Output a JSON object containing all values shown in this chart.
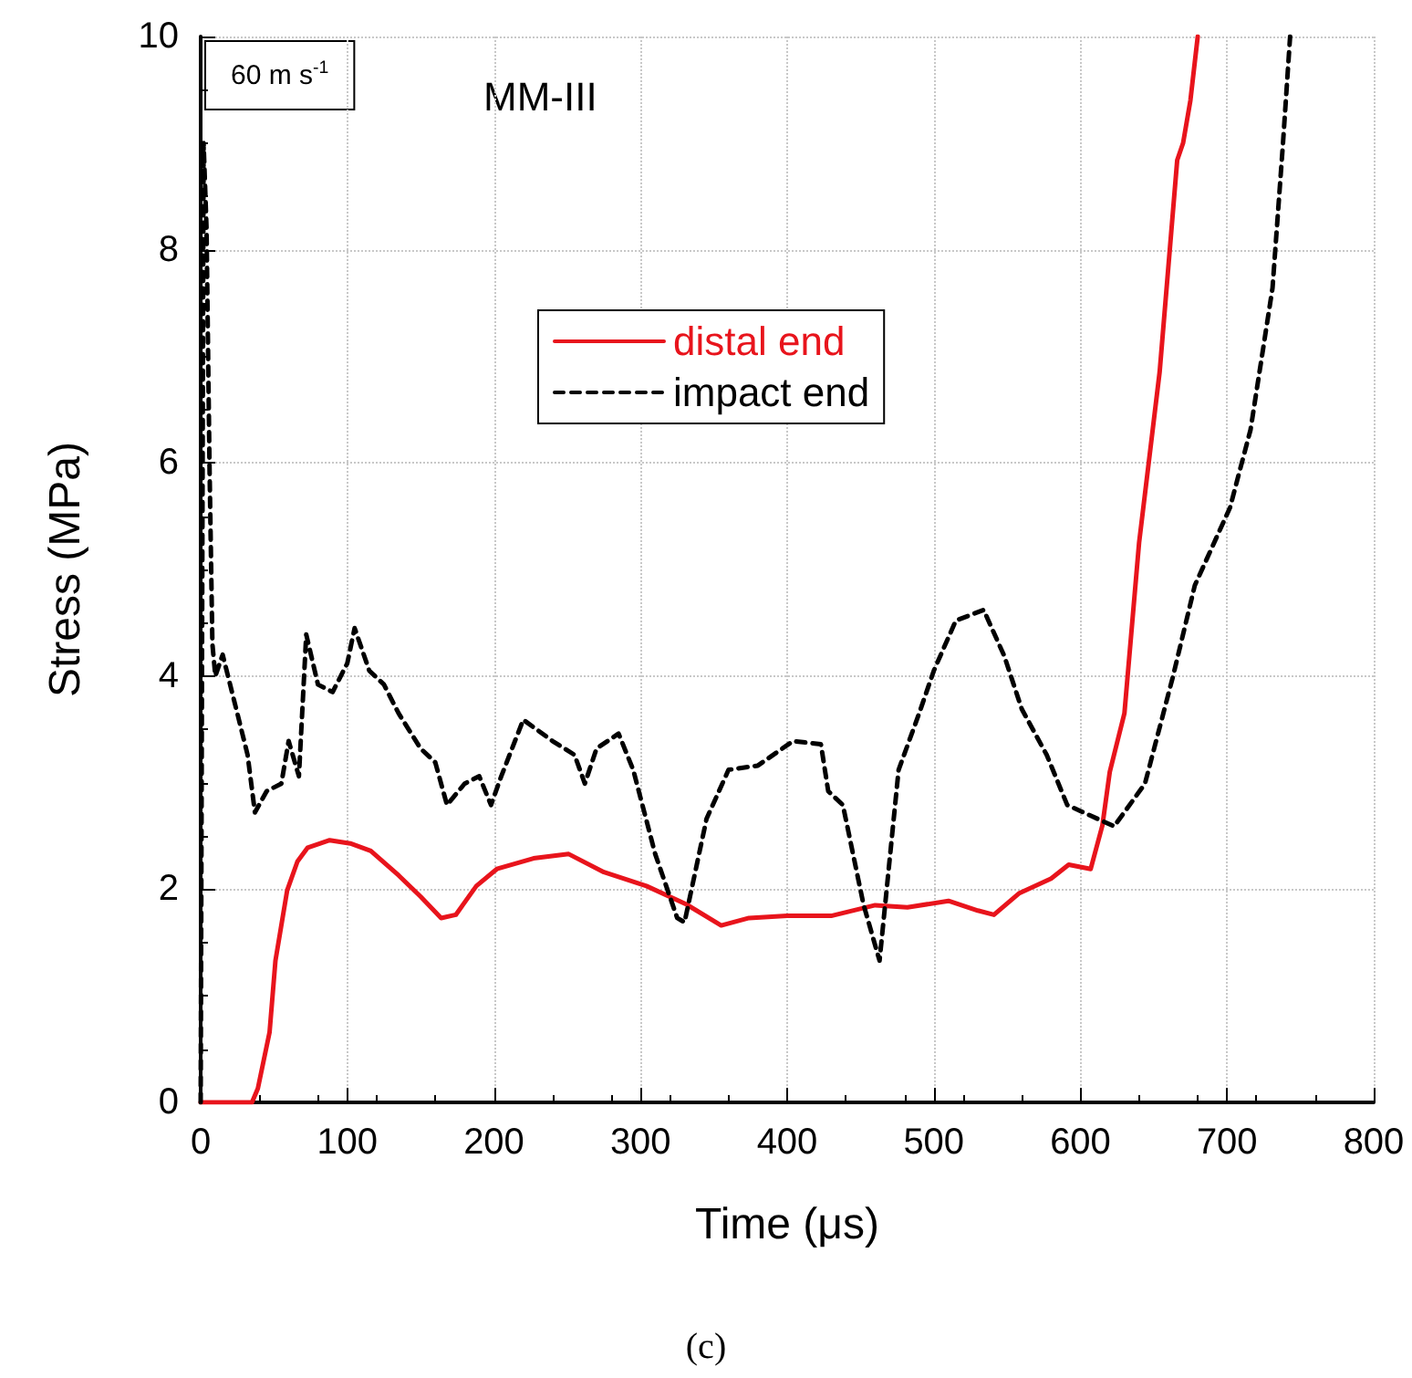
{
  "chart_data": {
    "type": "line",
    "xlabel": "Time (μs)",
    "ylabel": "Stress (MPa)",
    "annotations": [
      "60 m s$^{-1}$",
      "MM-III",
      "(c)"
    ],
    "xlim": [
      0,
      800
    ],
    "xticks": [
      0,
      100,
      200,
      300,
      400,
      500,
      600,
      700,
      800
    ],
    "ylim": [
      0,
      10
    ],
    "yticks": [
      0,
      2,
      4,
      6,
      8,
      10
    ],
    "grid": true,
    "legend": "top",
    "marker": "none",
    "series": [
      {
        "name": "distal end",
        "color": "#e8141c",
        "line_style": "solid",
        "x": [
          0,
          35,
          39,
          47,
          51,
          59,
          66,
          73,
          88,
          102,
          116,
          135,
          150,
          164,
          174,
          188,
          202,
          227,
          251,
          275,
          304,
          331,
          355,
          374,
          400,
          430,
          460,
          482,
          510,
          530,
          541,
          558,
          580,
          592,
          607,
          615,
          620,
          630,
          640,
          654,
          666,
          670,
          675,
          680
        ],
        "values": [
          0,
          0,
          0.13,
          0.66,
          1.33,
          1.99,
          2.26,
          2.39,
          2.46,
          2.43,
          2.36,
          2.13,
          1.93,
          1.73,
          1.76,
          2.03,
          2.19,
          2.29,
          2.33,
          2.16,
          2.03,
          1.86,
          1.66,
          1.73,
          1.75,
          1.75,
          1.85,
          1.83,
          1.89,
          1.8,
          1.76,
          1.96,
          2.1,
          2.23,
          2.19,
          2.6,
          3.1,
          3.65,
          5.25,
          6.85,
          8.84,
          9.0,
          9.4,
          10
        ]
      },
      {
        "name": "impact end",
        "color": "#000000",
        "line_style": "dashed",
        "x": [
          0,
          2,
          4,
          6,
          8,
          10,
          15,
          25,
          32,
          37,
          45,
          55,
          60,
          67,
          72,
          80,
          90,
          100,
          105,
          115,
          125,
          135,
          150,
          160,
          168,
          180,
          190,
          198,
          205,
          220,
          240,
          255,
          262,
          270,
          285,
          295,
          310,
          325,
          330,
          345,
          360,
          380,
          404,
          423,
          428,
          438,
          452,
          463,
          476,
          490,
          500,
          515,
          534,
          548,
          560,
          577,
          591,
          623,
          644,
          663,
          678,
          702,
          716,
          731,
          738,
          743
        ],
        "values": [
          0,
          9.0,
          8.2,
          6.0,
          4.3,
          4.0,
          4.2,
          3.65,
          3.26,
          2.72,
          2.92,
          2.99,
          3.39,
          3.06,
          4.39,
          3.92,
          3.85,
          4.12,
          4.45,
          4.05,
          3.92,
          3.65,
          3.32,
          3.19,
          2.79,
          2.99,
          3.06,
          2.79,
          3.06,
          3.59,
          3.39,
          3.26,
          2.99,
          3.32,
          3.46,
          3.12,
          2.33,
          1.73,
          1.69,
          2.66,
          3.12,
          3.16,
          3.39,
          3.36,
          2.92,
          2.79,
          1.86,
          1.33,
          3.12,
          3.65,
          4.05,
          4.52,
          4.62,
          4.19,
          3.69,
          3.26,
          2.79,
          2.59,
          2.99,
          3.99,
          4.85,
          5.58,
          6.31,
          7.64,
          8.97,
          10
        ]
      }
    ]
  }
}
